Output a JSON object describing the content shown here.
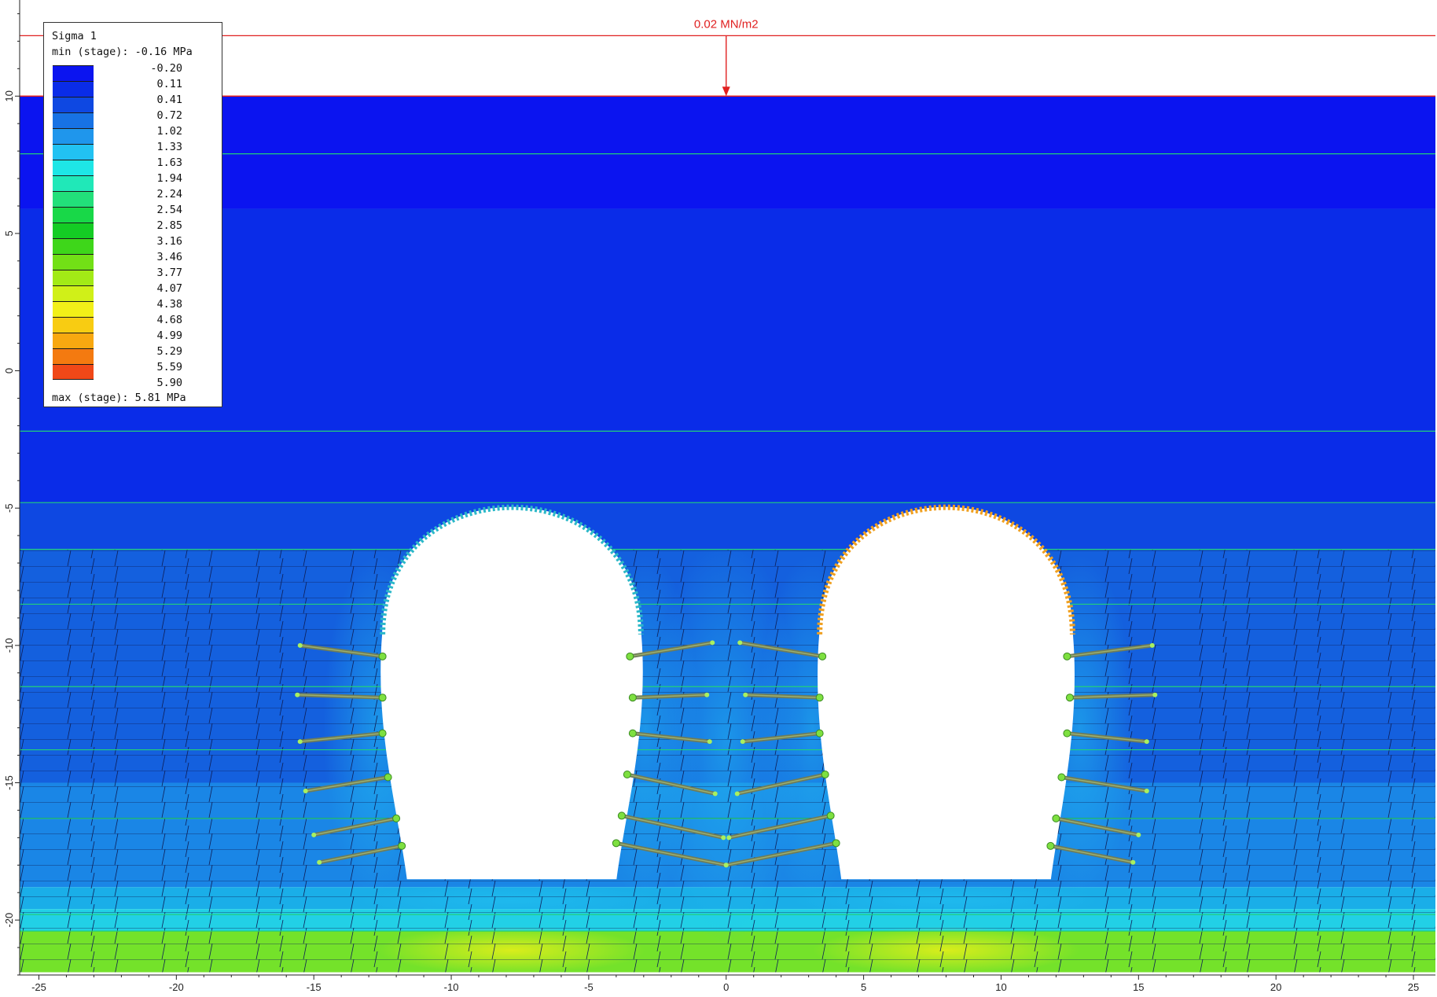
{
  "legend": {
    "title": "Sigma 1",
    "min_text": "min (stage): -0.16 MPa",
    "max_text": "max (stage): 5.81 MPa",
    "levels": [
      {
        "value": "-0.20",
        "color": "#0b14f0"
      },
      {
        "value": "0.11",
        "color": "#0a2ce8"
      },
      {
        "value": "0.41",
        "color": "#0e48e2"
      },
      {
        "value": "0.72",
        "color": "#1772e4"
      },
      {
        "value": "1.02",
        "color": "#1f96ec"
      },
      {
        "value": "1.33",
        "color": "#22c2f2"
      },
      {
        "value": "1.63",
        "color": "#1ee6e6"
      },
      {
        "value": "1.94",
        "color": "#20e8b8"
      },
      {
        "value": "2.24",
        "color": "#22e07a"
      },
      {
        "value": "2.54",
        "color": "#18d848"
      },
      {
        "value": "2.85",
        "color": "#14cc24"
      },
      {
        "value": "3.16",
        "color": "#3ed61a"
      },
      {
        "value": "3.46",
        "color": "#72e016"
      },
      {
        "value": "3.77",
        "color": "#a2ea16"
      },
      {
        "value": "4.07",
        "color": "#d0f018"
      },
      {
        "value": "4.38",
        "color": "#f2f018"
      },
      {
        "value": "4.68",
        "color": "#f8cc12"
      },
      {
        "value": "4.99",
        "color": "#f8a810"
      },
      {
        "value": "5.29",
        "color": "#f47a10"
      },
      {
        "value": "5.59",
        "color": "#f04818"
      },
      {
        "value": "5.90",
        "color": "#e01818"
      }
    ]
  },
  "load": {
    "label": "0.02 MN/m2",
    "x": 0,
    "y_top": 12.2,
    "y_surface": 10
  },
  "axes": {
    "x_ticks": [
      -25,
      -20,
      -15,
      -10,
      -5,
      0,
      5,
      10,
      15,
      20,
      25
    ],
    "y_ticks": [
      10,
      5,
      0,
      -5,
      -10,
      -15,
      -20
    ],
    "x_range": [
      -25.7,
      25.8
    ],
    "y_range": [
      -22.0,
      13.5
    ]
  },
  "model": {
    "x_min": -25.7,
    "x_max": 25.8,
    "y_top": 10,
    "y_bottom": -21.9,
    "layers": [
      {
        "y_top": 10,
        "y_bottom": 5.9,
        "color": "#0b14f0"
      },
      {
        "y_top": 5.9,
        "y_bottom": -4.8,
        "color": "#0a2ce8"
      },
      {
        "y_top": -4.8,
        "y_bottom": -6.5,
        "color": "#0e48e2"
      },
      {
        "y_top": -6.5,
        "y_bottom": -15.0,
        "color": "#1460de"
      },
      {
        "y_top": -15.0,
        "y_bottom": -18.8,
        "color": "#1a86e6"
      },
      {
        "y_top": -18.8,
        "y_bottom": -19.6,
        "color": "#1aaee8"
      },
      {
        "y_top": -19.6,
        "y_bottom": -20.4,
        "color": "#22d0e6"
      },
      {
        "y_top": -20.4,
        "y_bottom": -21.9,
        "color": "#74e22a"
      }
    ],
    "boundaries": [
      7.9,
      -2.2,
      -4.8,
      -6.5,
      -8.5,
      -11.5,
      -13.8,
      -16.3,
      -19.8,
      -20.4
    ],
    "tunnels": [
      {
        "center_x": -7.8,
        "crown_y": -4.0,
        "spring_y": -9.6,
        "half_width_spring": 4.7,
        "half_width_base": 3.8,
        "base_y": -18.5,
        "lining_color": "#2bb8c8"
      },
      {
        "center_x": 8.0,
        "crown_y": -4.0,
        "spring_y": -9.6,
        "half_width_spring": 4.6,
        "half_width_base": 3.8,
        "base_y": -18.5,
        "lining_color": "#f0a020"
      }
    ],
    "bolts": [
      [
        -12.5,
        -10.4,
        -15.5,
        -10.0
      ],
      [
        -12.5,
        -11.9,
        -15.6,
        -11.8
      ],
      [
        -12.5,
        -13.2,
        -15.5,
        -13.5
      ],
      [
        -12.3,
        -14.8,
        -15.3,
        -15.3
      ],
      [
        -12.0,
        -16.3,
        -15.0,
        -16.9
      ],
      [
        -11.8,
        -17.3,
        -14.8,
        -17.9
      ],
      [
        -3.5,
        -10.4,
        -0.5,
        -9.9
      ],
      [
        -3.4,
        -11.9,
        -0.7,
        -11.8
      ],
      [
        -3.4,
        -13.2,
        -0.6,
        -13.5
      ],
      [
        -3.6,
        -14.7,
        -0.4,
        -15.4
      ],
      [
        -3.8,
        -16.2,
        -0.1,
        -17.0
      ],
      [
        -4.0,
        -17.2,
        0.0,
        -18.0
      ],
      [
        3.5,
        -10.4,
        0.5,
        -9.9
      ],
      [
        3.4,
        -11.9,
        0.7,
        -11.8
      ],
      [
        3.4,
        -13.2,
        0.6,
        -13.5
      ],
      [
        3.6,
        -14.7,
        0.4,
        -15.4
      ],
      [
        3.8,
        -16.2,
        0.1,
        -17.0
      ],
      [
        4.0,
        -17.2,
        0.0,
        -18.0
      ],
      [
        12.4,
        -10.4,
        15.5,
        -10.0
      ],
      [
        12.5,
        -11.9,
        15.6,
        -11.8
      ],
      [
        12.4,
        -13.2,
        15.3,
        -13.5
      ],
      [
        12.2,
        -14.8,
        15.3,
        -15.3
      ],
      [
        12.0,
        -16.3,
        15.0,
        -16.9
      ],
      [
        11.8,
        -17.3,
        14.8,
        -17.9
      ]
    ]
  }
}
